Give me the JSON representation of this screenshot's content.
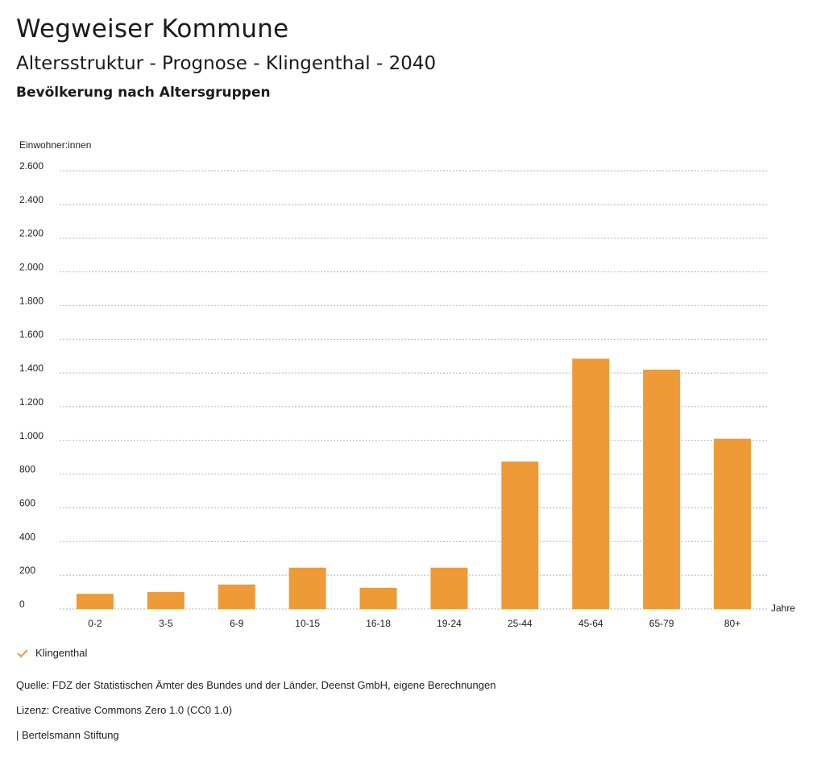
{
  "header": {
    "title": "Wegweiser Kommune",
    "subtitle": "Altersstruktur - Prognose - Klingenthal - 2040",
    "section": "Bevölkerung nach Altersgruppen"
  },
  "legend": {
    "label": "Klingenthal",
    "icon": "checkmark-icon"
  },
  "footer": {
    "source": "Quelle: FDZ der Statistischen Ämter des Bundes und der Länder, Deenst GmbH, eigene Berechnungen",
    "license": "Lizenz: Creative Commons Zero 1.0 (CC0 1.0)",
    "brand": "| Bertelsmann Stiftung"
  },
  "colors": {
    "bar": "#ed9a37",
    "grid": "#b5b5b5"
  },
  "chart_data": {
    "type": "bar",
    "ylabel": "Einwohner:innen",
    "xlabel": "Jahre",
    "categories": [
      "0-2",
      "3-5",
      "6-9",
      "10-15",
      "16-18",
      "19-24",
      "25-44",
      "45-64",
      "65-79",
      "80+"
    ],
    "series": [
      {
        "name": "Klingenthal",
        "values": [
          90,
          100,
          145,
          245,
          125,
          245,
          875,
          1485,
          1420,
          1010
        ]
      }
    ],
    "yticks": [
      0,
      200,
      400,
      600,
      800,
      1000,
      1200,
      1400,
      1600,
      1800,
      2000,
      2200,
      2400,
      2600
    ],
    "ytick_labels": [
      "0",
      "200",
      "400",
      "600",
      "800",
      "1.000",
      "1.200",
      "1.400",
      "1.600",
      "1.800",
      "2.000",
      "2.200",
      "2.400",
      "2.600"
    ],
    "ylim": [
      0,
      2600
    ],
    "grid": true,
    "grid_style": "dotted",
    "legend_position": "bottom-left"
  }
}
